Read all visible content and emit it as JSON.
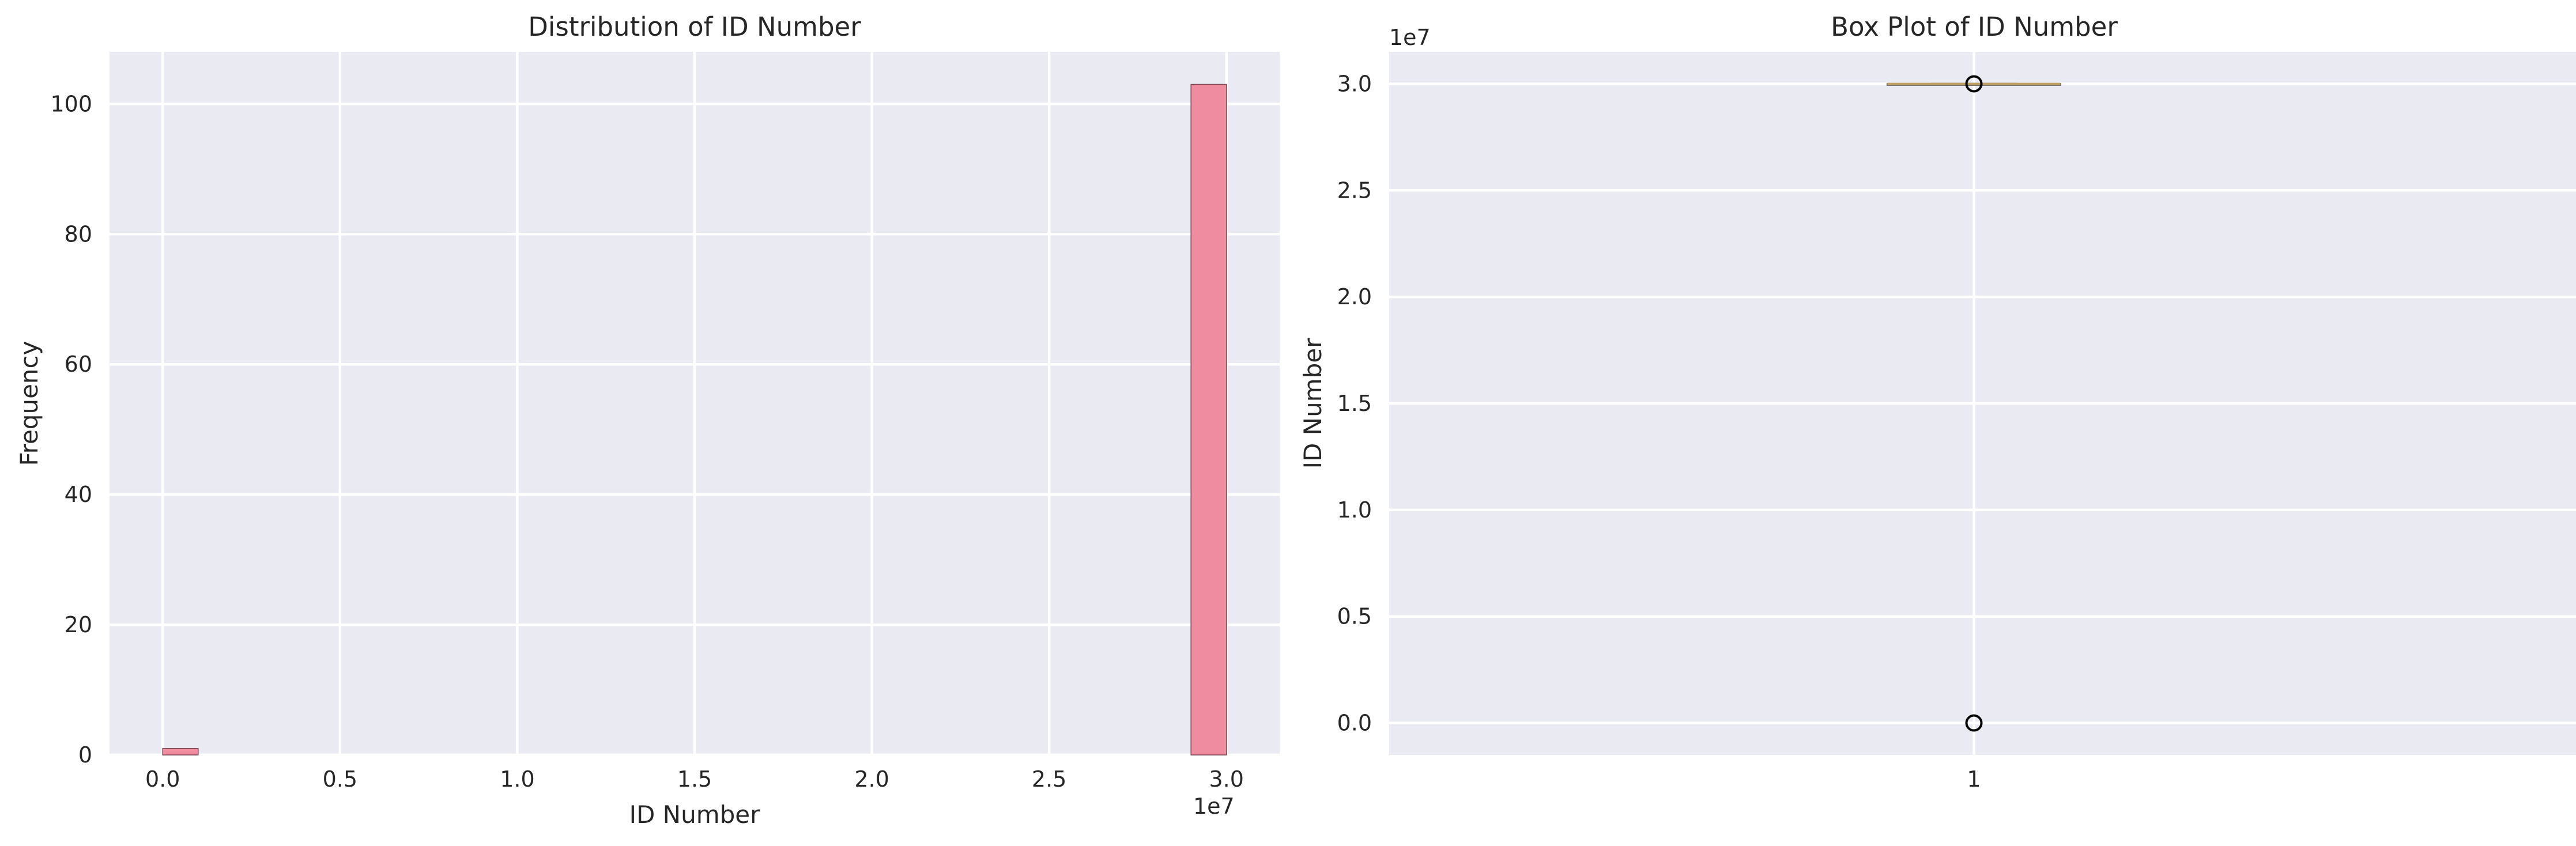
{
  "colors": {
    "plot_background": "#eaeaf2",
    "grid": "#ffffff",
    "hist_bar": "#f08ca0",
    "hist_edge": "#7a4550",
    "box_median": "#c0a060",
    "box_line": "#6b6b6b",
    "text": "#262626"
  },
  "chart_data": [
    {
      "type": "bar",
      "subtype": "histogram",
      "title": "Distribution of ID Number",
      "xlabel": "ID Number",
      "ylabel": "Frequency",
      "x_offset_label": "1e7",
      "xlim": [
        -1500000,
        31500000
      ],
      "ylim": [
        0,
        108
      ],
      "xticks": [
        0,
        5000000,
        10000000,
        15000000,
        20000000,
        25000000,
        30000000
      ],
      "xtick_labels": [
        "0.0",
        "0.5",
        "1.0",
        "1.5",
        "2.0",
        "2.5",
        "3.0"
      ],
      "yticks": [
        0,
        20,
        40,
        60,
        80,
        100
      ],
      "ytick_labels": [
        "0",
        "20",
        "40",
        "60",
        "80",
        "100"
      ],
      "grid": true,
      "bins": [
        {
          "x0": 0,
          "x1": 1000000,
          "count": 1
        },
        {
          "x0": 29000000,
          "x1": 30000000,
          "count": 103
        }
      ]
    },
    {
      "type": "box",
      "title": "Box Plot of ID Number",
      "ylabel": "ID Number",
      "y_offset_label": "1e7",
      "ylim": [
        -1500000,
        31500000
      ],
      "yticks": [
        0,
        5000000,
        10000000,
        15000000,
        20000000,
        25000000,
        30000000
      ],
      "ytick_labels": [
        "0.0",
        "0.5",
        "1.0",
        "1.5",
        "2.0",
        "2.5",
        "3.0"
      ],
      "xtick_labels": [
        "1"
      ],
      "grid": true,
      "box": {
        "whislo": 29950000,
        "q1": 29985000,
        "median": 29995000,
        "q3": 30000000,
        "whishi": 30010000
      },
      "fliers": [
        0,
        30000000
      ]
    }
  ]
}
